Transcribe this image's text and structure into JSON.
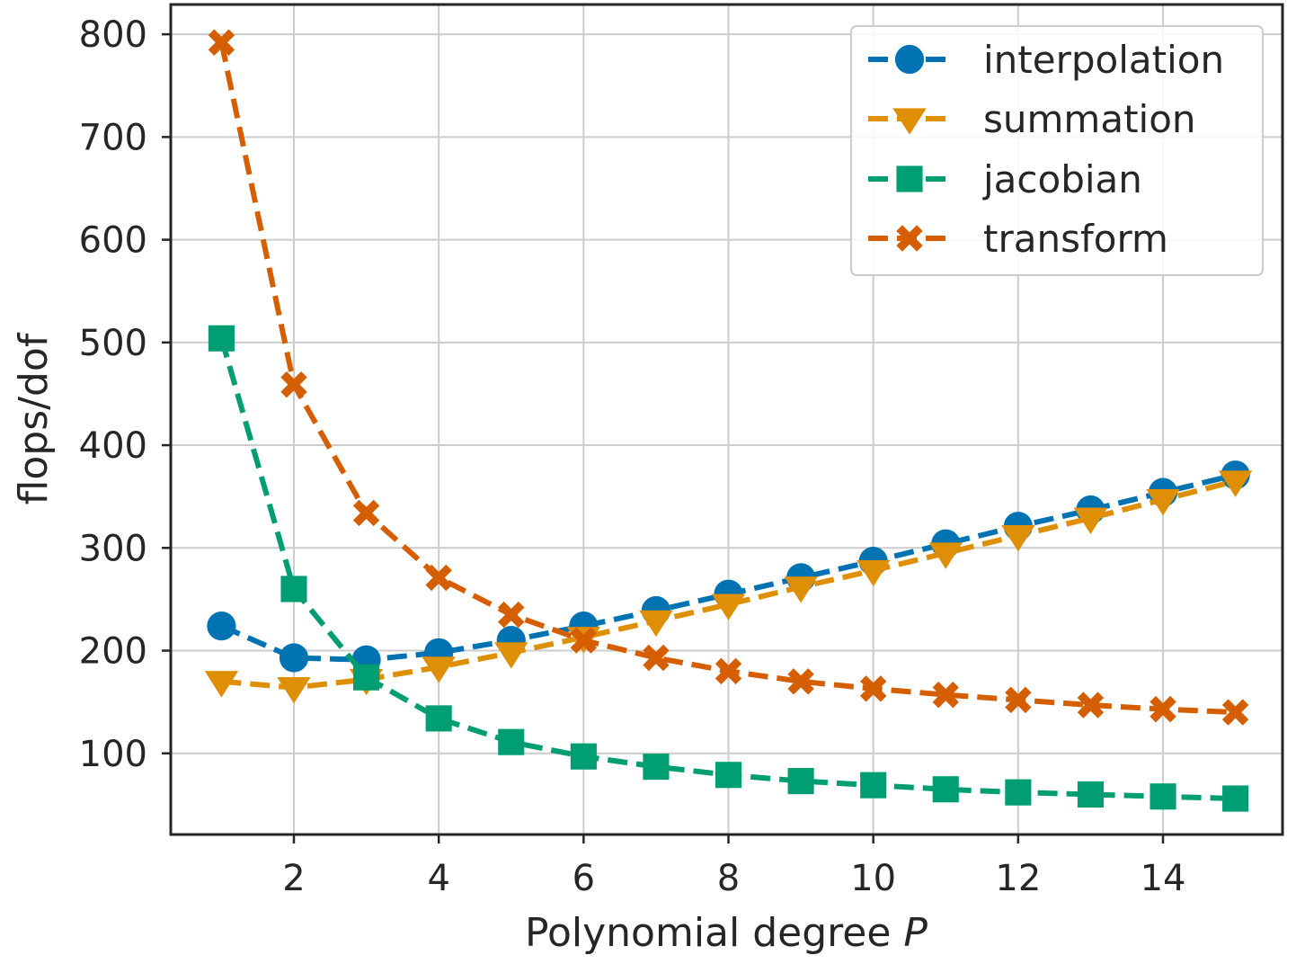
{
  "chart_data": {
    "type": "line",
    "title": "",
    "xlabel": "Polynomial degree ",
    "xlabel_var": "P",
    "ylabel": "flops/dof",
    "xlim": [
      0.3,
      15.65
    ],
    "ylim": [
      21,
      829
    ],
    "xticks": [
      2,
      4,
      6,
      8,
      10,
      12,
      14
    ],
    "yticks": [
      100,
      200,
      300,
      400,
      500,
      600,
      700,
      800
    ],
    "grid": true,
    "legend_position": "top-right",
    "x": [
      1,
      2,
      3,
      4,
      5,
      6,
      7,
      8,
      9,
      10,
      11,
      12,
      13,
      14,
      15
    ],
    "series": [
      {
        "name": "interpolation",
        "color": "#0173b2",
        "marker": "circle",
        "values": [
          224,
          193,
          191,
          198,
          210,
          224,
          239,
          255,
          271,
          287,
          304,
          321,
          337,
          354,
          371
        ]
      },
      {
        "name": "summation",
        "color": "#de8f05",
        "marker": "triangle-down",
        "values": [
          170,
          164,
          172,
          184,
          198,
          213,
          229,
          245,
          262,
          278,
          295,
          312,
          329,
          347,
          365
        ]
      },
      {
        "name": "jacobian",
        "color": "#029e73",
        "marker": "square",
        "values": [
          504,
          260,
          174,
          134,
          111,
          97,
          87,
          79,
          73,
          69,
          65,
          62,
          60,
          58,
          56
        ]
      },
      {
        "name": "transform",
        "color": "#d55e00",
        "marker": "x-filled",
        "values": [
          792,
          459,
          334,
          271,
          235,
          210,
          193,
          180,
          170,
          163,
          157,
          152,
          147,
          143,
          140
        ]
      }
    ]
  }
}
